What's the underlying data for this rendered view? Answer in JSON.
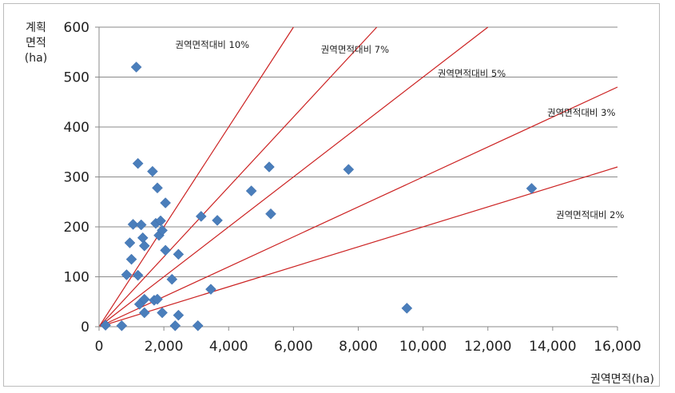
{
  "chart_data": {
    "type": "scatter",
    "ylabel_lines": [
      "계획",
      "면적",
      "(ha)"
    ],
    "xlabel": "권역면적(ha)",
    "xlim": [
      0,
      16000
    ],
    "ylim": [
      0,
      600
    ],
    "x_ticks": [
      0,
      2000,
      4000,
      6000,
      8000,
      10000,
      12000,
      14000,
      16000
    ],
    "x_tick_labels": [
      "0",
      "2,000",
      "4,000",
      "6,000",
      "8,000",
      "10,000",
      "12,000",
      "14,000",
      "16,000"
    ],
    "y_ticks": [
      0,
      100,
      200,
      300,
      400,
      500,
      600
    ],
    "y_tick_labels": [
      "0",
      "100",
      "200",
      "300",
      "400",
      "500",
      "600"
    ],
    "grid": "horizontal",
    "marker": "diamond",
    "marker_color": "#4a7ebb",
    "reference_line_color": "#cc2222",
    "reference_lines": [
      {
        "ratio": 0.1,
        "label": "권역면적대비 10%"
      },
      {
        "ratio": 0.07,
        "label": "권역면적대비 7%"
      },
      {
        "ratio": 0.05,
        "label": "권역면적대비 5%"
      },
      {
        "ratio": 0.03,
        "label": "권역면적대비 3%"
      },
      {
        "ratio": 0.02,
        "label": "권역면적대비 2%"
      }
    ],
    "points": [
      {
        "x": 200,
        "y": 3
      },
      {
        "x": 700,
        "y": 2
      },
      {
        "x": 850,
        "y": 104
      },
      {
        "x": 950,
        "y": 168
      },
      {
        "x": 1000,
        "y": 135
      },
      {
        "x": 1050,
        "y": 205
      },
      {
        "x": 1150,
        "y": 520
      },
      {
        "x": 1200,
        "y": 103
      },
      {
        "x": 1200,
        "y": 327
      },
      {
        "x": 1250,
        "y": 45
      },
      {
        "x": 1300,
        "y": 204
      },
      {
        "x": 1350,
        "y": 178
      },
      {
        "x": 1400,
        "y": 55
      },
      {
        "x": 1400,
        "y": 28
      },
      {
        "x": 1400,
        "y": 162
      },
      {
        "x": 1650,
        "y": 311
      },
      {
        "x": 1700,
        "y": 53
      },
      {
        "x": 1750,
        "y": 207
      },
      {
        "x": 1800,
        "y": 278
      },
      {
        "x": 1800,
        "y": 55
      },
      {
        "x": 1850,
        "y": 183
      },
      {
        "x": 1900,
        "y": 212
      },
      {
        "x": 1950,
        "y": 193
      },
      {
        "x": 1950,
        "y": 28
      },
      {
        "x": 2050,
        "y": 248
      },
      {
        "x": 2050,
        "y": 153
      },
      {
        "x": 2250,
        "y": 95
      },
      {
        "x": 2350,
        "y": 2
      },
      {
        "x": 2450,
        "y": 145
      },
      {
        "x": 2450,
        "y": 23
      },
      {
        "x": 3050,
        "y": 2
      },
      {
        "x": 3150,
        "y": 221
      },
      {
        "x": 3450,
        "y": 75
      },
      {
        "x": 3650,
        "y": 213
      },
      {
        "x": 4700,
        "y": 272
      },
      {
        "x": 5250,
        "y": 320
      },
      {
        "x": 5300,
        "y": 226
      },
      {
        "x": 7700,
        "y": 315
      },
      {
        "x": 9500,
        "y": 37
      },
      {
        "x": 13350,
        "y": 277
      }
    ]
  }
}
